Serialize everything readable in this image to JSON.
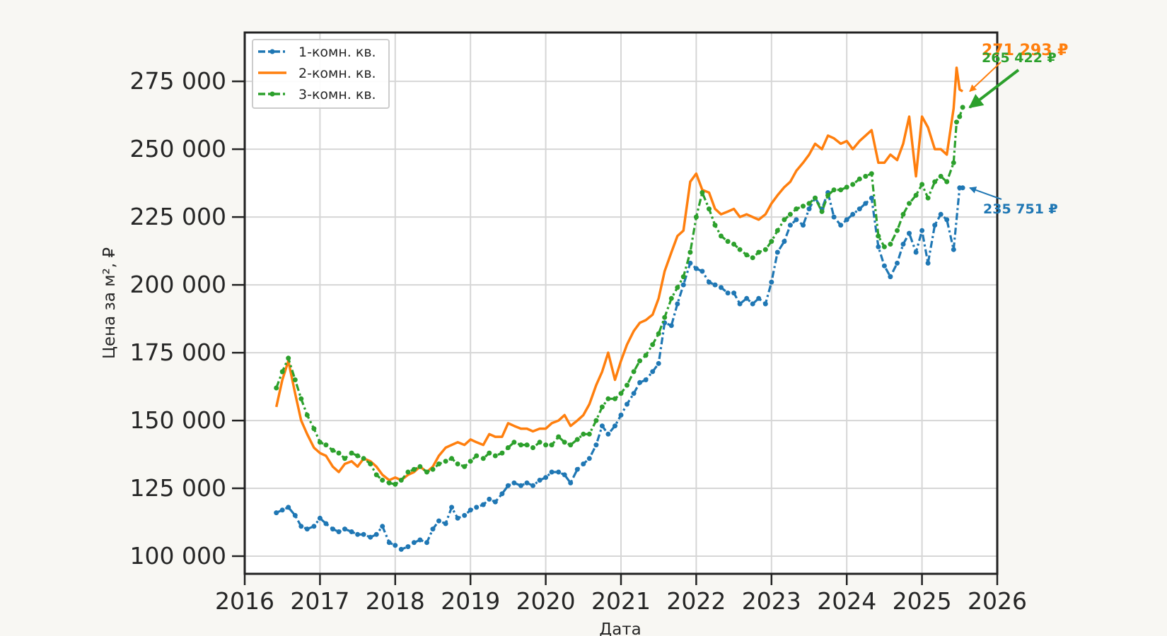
{
  "chart_data": {
    "type": "line",
    "title": "",
    "xlabel": "Дата",
    "ylabel": "Цена за м², ₽",
    "xlim": [
      2016,
      2026
    ],
    "ylim": [
      93500,
      293000
    ],
    "x_ticks": [
      "2016",
      "2017",
      "2018",
      "2019",
      "2020",
      "2021",
      "2022",
      "2023",
      "2024",
      "2025",
      "2026"
    ],
    "y_ticks": [
      {
        "value": 100000,
        "label": "100 000"
      },
      {
        "value": 125000,
        "label": "125 000"
      },
      {
        "value": 150000,
        "label": "150 000"
      },
      {
        "value": 175000,
        "label": "175 000"
      },
      {
        "value": 200000,
        "label": "200 000"
      },
      {
        "value": 225000,
        "label": "225 000"
      },
      {
        "value": 250000,
        "label": "250 000"
      },
      {
        "value": 275000,
        "label": "275 000"
      }
    ],
    "grid": true,
    "legend_position": "top-left",
    "series": [
      {
        "name": "1-комн. кв.",
        "color": "#1f77b4",
        "style": "dashdot-marker",
        "x": [
          2016.42,
          2016.5,
          2016.58,
          2016.67,
          2016.75,
          2016.83,
          2016.92,
          2017.0,
          2017.08,
          2017.17,
          2017.25,
          2017.33,
          2017.42,
          2017.5,
          2017.58,
          2017.67,
          2017.75,
          2017.83,
          2017.92,
          2018.0,
          2018.08,
          2018.17,
          2018.25,
          2018.33,
          2018.42,
          2018.5,
          2018.58,
          2018.67,
          2018.75,
          2018.83,
          2018.92,
          2019.0,
          2019.08,
          2019.17,
          2019.25,
          2019.33,
          2019.42,
          2019.5,
          2019.58,
          2019.67,
          2019.75,
          2019.83,
          2019.92,
          2020.0,
          2020.08,
          2020.17,
          2020.25,
          2020.33,
          2020.42,
          2020.5,
          2020.58,
          2020.67,
          2020.75,
          2020.83,
          2020.92,
          2021.0,
          2021.08,
          2021.17,
          2021.25,
          2021.33,
          2021.42,
          2021.5,
          2021.58,
          2021.67,
          2021.75,
          2021.83,
          2021.92,
          2022.0,
          2022.08,
          2022.17,
          2022.25,
          2022.33,
          2022.42,
          2022.5,
          2022.58,
          2022.67,
          2022.75,
          2022.83,
          2022.92,
          2023.0,
          2023.08,
          2023.17,
          2023.25,
          2023.33,
          2023.42,
          2023.5,
          2023.58,
          2023.67,
          2023.75,
          2023.83,
          2023.92,
          2024.0,
          2024.08,
          2024.17,
          2024.25,
          2024.33,
          2024.42,
          2024.5,
          2024.58,
          2024.67,
          2024.75,
          2024.83,
          2024.92,
          2025.0,
          2025.08,
          2025.17,
          2025.25,
          2025.33,
          2025.42,
          2025.5,
          2025.54
        ],
        "values": [
          116000,
          117000,
          118000,
          115000,
          111000,
          110000,
          111000,
          114000,
          112000,
          110000,
          109000,
          110000,
          109000,
          108000,
          108000,
          107000,
          108000,
          111000,
          105000,
          104000,
          102500,
          103500,
          105000,
          106000,
          105000,
          110000,
          113000,
          112000,
          118000,
          114000,
          115000,
          117000,
          118000,
          119000,
          121000,
          120000,
          123000,
          126000,
          127000,
          126000,
          127000,
          126000,
          128000,
          129000,
          131000,
          131000,
          130000,
          127000,
          132000,
          134000,
          136000,
          141000,
          148000,
          145000,
          148000,
          152000,
          156000,
          160000,
          164000,
          165000,
          168000,
          171000,
          186000,
          185000,
          193000,
          200000,
          208000,
          206000,
          205000,
          201000,
          200000,
          199000,
          197000,
          197000,
          193000,
          195000,
          193000,
          195000,
          193000,
          201000,
          212000,
          216000,
          222000,
          224000,
          222000,
          228000,
          232000,
          228000,
          234000,
          225000,
          222000,
          224000,
          226000,
          228000,
          230000,
          232000,
          214000,
          207000,
          203000,
          208000,
          215000,
          219000,
          212000,
          220000,
          208000,
          222000,
          226000,
          224000,
          213000,
          235751,
          235751
        ]
      },
      {
        "name": "2-комн. кв.",
        "color": "#ff7f0e",
        "style": "solid",
        "x": [
          2016.42,
          2016.5,
          2016.58,
          2016.67,
          2016.75,
          2016.83,
          2016.92,
          2017.0,
          2017.08,
          2017.17,
          2017.25,
          2017.33,
          2017.42,
          2017.5,
          2017.58,
          2017.67,
          2017.75,
          2017.83,
          2017.92,
          2018.0,
          2018.08,
          2018.17,
          2018.25,
          2018.33,
          2018.42,
          2018.5,
          2018.58,
          2018.67,
          2018.75,
          2018.83,
          2018.92,
          2019.0,
          2019.08,
          2019.17,
          2019.25,
          2019.33,
          2019.42,
          2019.5,
          2019.58,
          2019.67,
          2019.75,
          2019.83,
          2019.92,
          2020.0,
          2020.08,
          2020.17,
          2020.25,
          2020.33,
          2020.42,
          2020.5,
          2020.58,
          2020.67,
          2020.75,
          2020.83,
          2020.92,
          2021.0,
          2021.08,
          2021.17,
          2021.25,
          2021.33,
          2021.42,
          2021.5,
          2021.58,
          2021.67,
          2021.75,
          2021.83,
          2021.92,
          2022.0,
          2022.08,
          2022.17,
          2022.25,
          2022.33,
          2022.42,
          2022.5,
          2022.58,
          2022.67,
          2022.75,
          2022.83,
          2022.92,
          2023.0,
          2023.08,
          2023.17,
          2023.25,
          2023.33,
          2023.42,
          2023.5,
          2023.58,
          2023.67,
          2023.75,
          2023.83,
          2023.92,
          2024.0,
          2024.08,
          2024.17,
          2024.25,
          2024.33,
          2024.42,
          2024.5,
          2024.58,
          2024.67,
          2024.75,
          2024.83,
          2024.92,
          2025.0,
          2025.08,
          2025.17,
          2025.25,
          2025.33,
          2025.42,
          2025.46,
          2025.5,
          2025.54
        ],
        "values": [
          155000,
          165000,
          172000,
          160000,
          150000,
          145000,
          140000,
          138000,
          137000,
          133000,
          131000,
          134000,
          135000,
          133000,
          136000,
          135000,
          133000,
          130000,
          128000,
          129000,
          128000,
          130000,
          131000,
          133000,
          131000,
          133000,
          137000,
          140000,
          141000,
          142000,
          141000,
          143000,
          142000,
          141000,
          145000,
          144000,
          144000,
          149000,
          148000,
          147000,
          147000,
          146000,
          147000,
          147000,
          149000,
          150000,
          152000,
          148000,
          150000,
          152000,
          156000,
          163000,
          168000,
          175000,
          165000,
          172000,
          178000,
          183000,
          186000,
          187000,
          189000,
          195000,
          205000,
          212000,
          218000,
          220000,
          238000,
          241000,
          235000,
          234000,
          228000,
          226000,
          227000,
          228000,
          225000,
          226000,
          225000,
          224000,
          226000,
          230000,
          233000,
          236000,
          238000,
          242000,
          245000,
          248000,
          252000,
          250000,
          255000,
          254000,
          252000,
          253000,
          250000,
          253000,
          255000,
          257000,
          245000,
          245000,
          248000,
          246000,
          252000,
          262000,
          240000,
          262000,
          258000,
          250000,
          250000,
          248000,
          265000,
          280000,
          272000,
          271293
        ]
      },
      {
        "name": "3-комн. кв.",
        "color": "#2ca02c",
        "style": "dashdot-marker",
        "x": [
          2016.42,
          2016.5,
          2016.58,
          2016.67,
          2016.75,
          2016.83,
          2016.92,
          2017.0,
          2017.08,
          2017.17,
          2017.25,
          2017.33,
          2017.42,
          2017.5,
          2017.58,
          2017.67,
          2017.75,
          2017.83,
          2017.92,
          2018.0,
          2018.08,
          2018.17,
          2018.25,
          2018.33,
          2018.42,
          2018.5,
          2018.58,
          2018.67,
          2018.75,
          2018.83,
          2018.92,
          2019.0,
          2019.08,
          2019.17,
          2019.25,
          2019.33,
          2019.42,
          2019.5,
          2019.58,
          2019.67,
          2019.75,
          2019.83,
          2019.92,
          2020.0,
          2020.08,
          2020.17,
          2020.25,
          2020.33,
          2020.42,
          2020.5,
          2020.58,
          2020.67,
          2020.75,
          2020.83,
          2020.92,
          2021.0,
          2021.08,
          2021.17,
          2021.25,
          2021.33,
          2021.42,
          2021.5,
          2021.58,
          2021.67,
          2021.75,
          2021.83,
          2021.92,
          2022.0,
          2022.08,
          2022.17,
          2022.25,
          2022.33,
          2022.42,
          2022.5,
          2022.58,
          2022.67,
          2022.75,
          2022.83,
          2022.92,
          2023.0,
          2023.08,
          2023.17,
          2023.25,
          2023.33,
          2023.42,
          2023.5,
          2023.58,
          2023.67,
          2023.75,
          2023.83,
          2023.92,
          2024.0,
          2024.08,
          2024.17,
          2024.25,
          2024.33,
          2024.42,
          2024.5,
          2024.58,
          2024.67,
          2024.75,
          2024.83,
          2024.92,
          2025.0,
          2025.08,
          2025.17,
          2025.25,
          2025.33,
          2025.42,
          2025.46,
          2025.5,
          2025.54
        ],
        "values": [
          162000,
          168000,
          173000,
          165000,
          158000,
          152000,
          147000,
          142000,
          141000,
          139000,
          138000,
          136000,
          138000,
          137000,
          136000,
          134000,
          130000,
          128000,
          127000,
          126500,
          128000,
          131000,
          132000,
          133000,
          131000,
          132000,
          134000,
          135000,
          136000,
          134000,
          133000,
          135000,
          137000,
          136000,
          138000,
          137000,
          138000,
          140000,
          142000,
          141000,
          141000,
          140000,
          142000,
          141000,
          141000,
          144000,
          142000,
          141000,
          143000,
          145000,
          145000,
          150000,
          155000,
          158000,
          158000,
          160000,
          163000,
          168000,
          172000,
          174000,
          178000,
          182000,
          188000,
          195000,
          199000,
          203000,
          212000,
          225000,
          234000,
          228000,
          222000,
          218000,
          216000,
          215000,
          213000,
          211000,
          210000,
          212000,
          213000,
          216000,
          220000,
          224000,
          226000,
          228000,
          229000,
          230000,
          232000,
          227000,
          233000,
          235000,
          235000,
          236000,
          237000,
          239000,
          240000,
          241000,
          218000,
          214000,
          215000,
          220000,
          226000,
          230000,
          233000,
          237000,
          232000,
          238000,
          240000,
          238000,
          245000,
          260000,
          262000,
          265422
        ]
      }
    ],
    "annotations": [
      {
        "text": "271 293 ₽",
        "series": 1,
        "x": 2025.54,
        "y": 271293,
        "color": "#ff7f0e"
      },
      {
        "text": "265 422 ₽",
        "series": 2,
        "x": 2025.54,
        "y": 265422,
        "color": "#2ca02c"
      },
      {
        "text": "235 751 ₽",
        "series": 0,
        "x": 2025.54,
        "y": 235751,
        "color": "#1f77b4"
      }
    ]
  }
}
